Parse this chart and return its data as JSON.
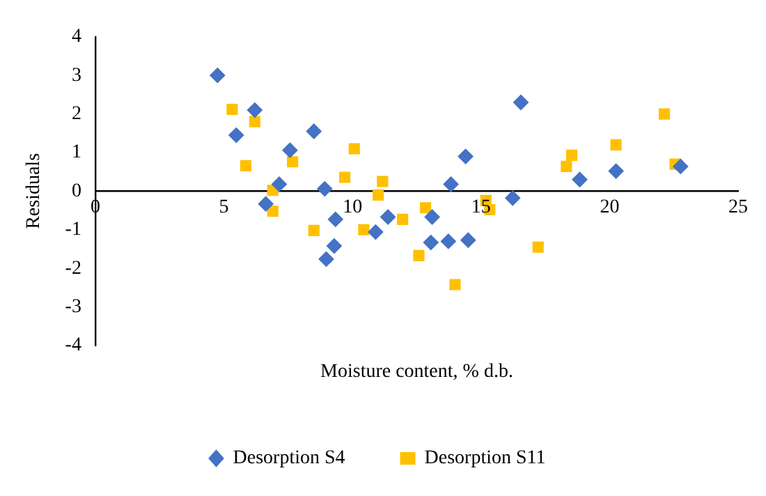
{
  "chart_data": {
    "type": "scatter",
    "xlabel": "Moisture content, % d.b.",
    "ylabel": "Residuals",
    "xlim": [
      0,
      25
    ],
    "xticks": [
      0,
      5,
      10,
      15,
      20,
      25
    ],
    "ylim": [
      -4,
      4
    ],
    "yticks": [
      -4,
      -3,
      -2,
      -1,
      0,
      1,
      2,
      3,
      4
    ],
    "grid": false,
    "legend": "bottom",
    "series": [
      {
        "name": "Desorption S4",
        "color": "#4472c4",
        "marker": "diamond",
        "x": [
          4.75,
          5.48,
          6.2,
          6.63,
          7.15,
          7.57,
          8.5,
          8.92,
          9.34,
          9.29,
          8.98,
          11.38,
          10.9,
          13.83,
          13.1,
          13.05,
          13.73,
          14.5,
          16.23,
          18.84,
          20.25,
          22.76,
          16.55,
          14.4
        ],
        "values": [
          3.0,
          1.45,
          2.1,
          -0.33,
          0.18,
          1.06,
          1.55,
          0.06,
          -0.73,
          -1.42,
          -1.76,
          -0.67,
          -1.06,
          0.18,
          -0.67,
          -1.33,
          -1.3,
          -1.27,
          -0.18,
          0.3,
          0.52,
          0.64,
          2.3,
          0.9
        ]
      },
      {
        "name": "Desorption S11",
        "color": "#ffc000",
        "marker": "square",
        "x": [
          5.32,
          6.2,
          5.85,
          7.67,
          10.07,
          9.7,
          11.17,
          6.9,
          6.9,
          8.5,
          11.0,
          10.44,
          11.95,
          12.84,
          12.58,
          13.99,
          15.19,
          15.34,
          17.22,
          18.53,
          18.32,
          20.25,
          22.13,
          22.55
        ],
        "values": [
          2.12,
          1.8,
          0.66,
          0.76,
          1.1,
          0.36,
          0.25,
          0.02,
          -0.52,
          -1.02,
          -0.1,
          -1.0,
          -0.73,
          -0.43,
          -1.67,
          -2.42,
          -0.24,
          -0.48,
          -1.45,
          0.93,
          0.64,
          1.2,
          2.0,
          0.7
        ]
      }
    ]
  }
}
